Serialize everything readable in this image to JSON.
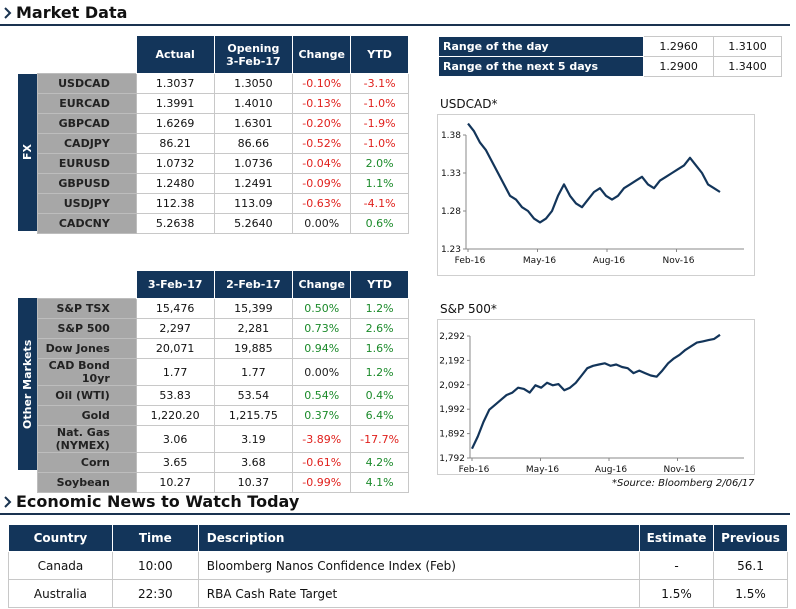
{
  "market_header": "Market Data",
  "news_header": "Economic News to Watch Today",
  "fx": {
    "side_label": "FX",
    "headers": [
      "Actual",
      "Opening\n3-Feb-17",
      "Change",
      "YTD"
    ],
    "header_opening_line1": "Opening",
    "header_opening_line2": "3-Feb-17",
    "rows": [
      {
        "name": "USDCAD",
        "actual": "1.3037",
        "opening": "1.3050",
        "change": "-0.10%",
        "ytd": "-3.1%"
      },
      {
        "name": "EURCAD",
        "actual": "1.3991",
        "opening": "1.4010",
        "change": "-0.13%",
        "ytd": "-1.0%"
      },
      {
        "name": "GBPCAD",
        "actual": "1.6269",
        "opening": "1.6301",
        "change": "-0.20%",
        "ytd": "-1.9%"
      },
      {
        "name": "CADJPY",
        "actual": "86.21",
        "opening": "86.66",
        "change": "-0.52%",
        "ytd": "-1.0%"
      },
      {
        "name": "EURUSD",
        "actual": "1.0732",
        "opening": "1.0736",
        "change": "-0.04%",
        "ytd": "2.0%"
      },
      {
        "name": "GBPUSD",
        "actual": "1.2480",
        "opening": "1.2491",
        "change": "-0.09%",
        "ytd": "1.1%"
      },
      {
        "name": "USDJPY",
        "actual": "112.38",
        "opening": "113.09",
        "change": "-0.63%",
        "ytd": "-4.1%"
      },
      {
        "name": "CADCNY",
        "actual": "5.2638",
        "opening": "5.2640",
        "change": "0.00%",
        "ytd": "0.6%"
      }
    ]
  },
  "other": {
    "side_label": "Other Markets",
    "headers": [
      "3-Feb-17",
      "2-Feb-17",
      "Change",
      "YTD"
    ],
    "rows": [
      {
        "name": "S&P TSX",
        "a": "15,476",
        "b": "15,399",
        "change": "0.50%",
        "ytd": "1.2%"
      },
      {
        "name": "S&P 500",
        "a": "2,297",
        "b": "2,281",
        "change": "0.73%",
        "ytd": "2.6%"
      },
      {
        "name": "Dow Jones",
        "a": "20,071",
        "b": "19,885",
        "change": "0.94%",
        "ytd": "1.6%"
      },
      {
        "name": "CAD Bond 10yr",
        "a": "1.77",
        "b": "1.77",
        "change": "0.00%",
        "ytd": "1.2%"
      },
      {
        "name": "Oil (WTI)",
        "a": "53.83",
        "b": "53.54",
        "change": "0.54%",
        "ytd": "0.4%"
      },
      {
        "name": "Gold",
        "a": "1,220.20",
        "b": "1,215.75",
        "change": "0.37%",
        "ytd": "6.4%"
      },
      {
        "name": "Nat. Gas (NYMEX)",
        "a": "3.06",
        "b": "3.19",
        "change": "-3.89%",
        "ytd": "-17.7%"
      },
      {
        "name": "Corn",
        "a": "3.65",
        "b": "3.68",
        "change": "-0.61%",
        "ytd": "4.2%"
      },
      {
        "name": "Soybean",
        "a": "10.27",
        "b": "10.37",
        "change": "-0.99%",
        "ytd": "4.1%"
      }
    ]
  },
  "range": {
    "rows": [
      {
        "label": "Range of the day",
        "low": "1.2960",
        "high": "1.3100"
      },
      {
        "label": "Range of the next 5 days",
        "low": "1.2900",
        "high": "1.3400"
      }
    ]
  },
  "source_note": "*Source: Bloomberg  2/06/17",
  "chart_data": [
    {
      "type": "line",
      "title": "USDCAD*",
      "x_ticks": [
        "Feb-16",
        "May-16",
        "Aug-16",
        "Nov-16"
      ],
      "y_ticks": [
        "1.38",
        "1.33",
        "1.28",
        "1.23"
      ],
      "ylim": [
        1.23,
        1.38
      ],
      "series": [
        {
          "values": [
            1.395,
            1.385,
            1.37,
            1.36,
            1.345,
            1.33,
            1.315,
            1.3,
            1.295,
            1.285,
            1.28,
            1.27,
            1.265,
            1.27,
            1.28,
            1.3,
            1.315,
            1.3,
            1.29,
            1.285,
            1.295,
            1.305,
            1.31,
            1.3,
            1.295,
            1.3,
            1.31,
            1.315,
            1.32,
            1.325,
            1.315,
            1.31,
            1.32,
            1.325,
            1.33,
            1.335,
            1.34,
            1.35,
            1.34,
            1.33,
            1.315,
            1.31,
            1.305
          ]
        }
      ]
    },
    {
      "type": "line",
      "title": "S&P 500*",
      "x_ticks": [
        "Feb-16",
        "May-16",
        "Aug-16",
        "Nov-16"
      ],
      "y_ticks": [
        "2,292",
        "2,192",
        "2,092",
        "1,992",
        "1,892",
        "1,792"
      ],
      "ylim": [
        1792,
        2292
      ],
      "series": [
        {
          "values": [
            1830,
            1880,
            1940,
            1990,
            2010,
            2030,
            2050,
            2060,
            2080,
            2075,
            2060,
            2090,
            2080,
            2100,
            2090,
            2095,
            2070,
            2080,
            2100,
            2130,
            2160,
            2170,
            2175,
            2180,
            2170,
            2175,
            2165,
            2160,
            2140,
            2150,
            2140,
            2130,
            2125,
            2150,
            2180,
            2200,
            2215,
            2235,
            2250,
            2265,
            2270,
            2275,
            2280,
            2297
          ]
        }
      ]
    }
  ],
  "news": {
    "headers": [
      "Country",
      "Time",
      "Description",
      "Estimate",
      "Previous"
    ],
    "rows": [
      {
        "country": "Canada",
        "time": "10:00",
        "desc": "Bloomberg Nanos Confidence Index (Feb)",
        "estimate": "-",
        "previous": "56.1"
      },
      {
        "country": "Australia",
        "time": "22:30",
        "desc": "RBA Cash Rate Target",
        "estimate": "1.5%",
        "previous": "1.5%"
      }
    ]
  }
}
